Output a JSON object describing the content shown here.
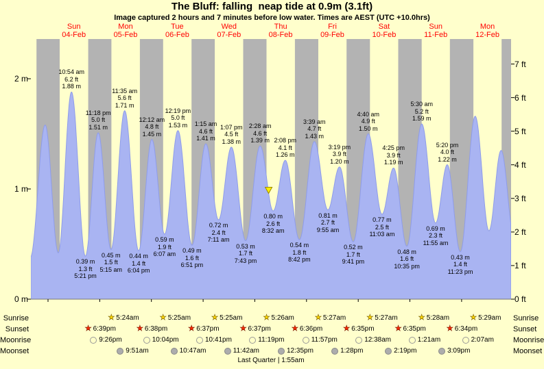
{
  "chart_data": {
    "type": "area",
    "title": "The Bluff: falling  neap tide at 0.9m (3.1ft)",
    "subtitle": "Image captured 2 hours and 7 minutes before low water. Times are AEST (UTC +10.0hrs)",
    "grid": false,
    "units": {
      "left": "m",
      "right": "ft"
    },
    "ylim_m": [
      0,
      2.36
    ],
    "x_axis": {
      "range_hours": [
        -7.96,
        214.96
      ],
      "t0_meaning": "hours from Sun 04-Feb 00:00",
      "days": [
        {
          "name": "Sun",
          "date": "04-Feb"
        },
        {
          "name": "Mon",
          "date": "05-Feb"
        },
        {
          "name": "Tue",
          "date": "06-Feb"
        },
        {
          "name": "Wed",
          "date": "07-Feb"
        },
        {
          "name": "Thu",
          "date": "08-Feb"
        },
        {
          "name": "Fri",
          "date": "09-Feb"
        },
        {
          "name": "Sat",
          "date": "10-Feb"
        },
        {
          "name": "Sun",
          "date": "11-Feb"
        },
        {
          "name": "Mon",
          "date": "12-Feb"
        }
      ]
    },
    "y_axis": {
      "left_ticks": [
        {
          "value": 0,
          "label": "0 m"
        },
        {
          "value": 1,
          "label": "1 m"
        },
        {
          "value": 2,
          "label": "2 m"
        }
      ],
      "right_ticks": [
        {
          "ft": 0,
          "label": "0 ft"
        },
        {
          "ft": 1,
          "label": "1 ft"
        },
        {
          "ft": 2,
          "label": "2 ft"
        },
        {
          "ft": 3,
          "label": "3 ft"
        },
        {
          "ft": 4,
          "label": "4 ft"
        },
        {
          "ft": 5,
          "label": "5 ft"
        },
        {
          "ft": 6,
          "label": "6 ft"
        },
        {
          "ft": 7,
          "label": "7 ft"
        }
      ]
    },
    "tide_extremes": [
      {
        "t": -8.2,
        "m": 0.38,
        "type": "low"
      },
      {
        "t": -1.33,
        "m": 1.58,
        "type": "high"
      },
      {
        "t": 4.75,
        "m": 0.42,
        "type": "low"
      },
      {
        "t": 10.9,
        "m": 1.88,
        "type": "high",
        "lines": [
          "10:54 am",
          "6.2 ft",
          "1.88 m"
        ]
      },
      {
        "t": 17.35,
        "m": 0.39,
        "type": "low",
        "lines": [
          "0.39 m",
          "1.3 ft",
          "5:21 pm"
        ]
      },
      {
        "t": 23.3,
        "m": 1.51,
        "type": "high",
        "lines": [
          "11:18 pm",
          "5.0 ft",
          "1.51 m"
        ]
      },
      {
        "t": 29.25,
        "m": 0.45,
        "type": "low",
        "lines": [
          "0.45 m",
          "1.5 ft",
          "5:15 am"
        ]
      },
      {
        "t": 35.583,
        "m": 1.71,
        "type": "high",
        "lines": [
          "11:35 am",
          "5.6 ft",
          "1.71 m"
        ]
      },
      {
        "t": 42.067,
        "m": 0.44,
        "type": "low",
        "lines": [
          "0.44 m",
          "1.4 ft",
          "6:04 pm"
        ]
      },
      {
        "t": 48.2,
        "m": 1.45,
        "type": "high",
        "lines": [
          "12:12 am",
          "4.8 ft",
          "1.45 m"
        ]
      },
      {
        "t": 54.117,
        "m": 0.59,
        "type": "low",
        "lines": [
          "0.59 m",
          "1.9 ft",
          "6:07 am"
        ]
      },
      {
        "t": 60.317,
        "m": 1.53,
        "type": "high",
        "lines": [
          "12:19 pm",
          "5.0 ft",
          "1.53 m"
        ]
      },
      {
        "t": 66.85,
        "m": 0.49,
        "type": "low",
        "lines": [
          "0.49 m",
          "1.6 ft",
          "6:51 pm"
        ]
      },
      {
        "t": 73.25,
        "m": 1.41,
        "type": "high",
        "lines": [
          "1:15 am",
          "4.6 ft",
          "1.41 m"
        ]
      },
      {
        "t": 79.183,
        "m": 0.72,
        "type": "low",
        "lines": [
          "0.72 m",
          "2.4 ft",
          "7:11 am"
        ]
      },
      {
        "t": 85.117,
        "m": 1.38,
        "type": "high",
        "lines": [
          "1:07 pm",
          "4.5 ft",
          "1.38 m"
        ]
      },
      {
        "t": 91.717,
        "m": 0.53,
        "type": "low",
        "lines": [
          "0.53 m",
          "1.7 ft",
          "7:43 pm"
        ]
      },
      {
        "t": 98.467,
        "m": 1.39,
        "type": "high",
        "lines": [
          "2:28 am",
          "4.6 ft",
          "1.39 m"
        ]
      },
      {
        "t": 104.533,
        "m": 0.8,
        "type": "low",
        "lines": [
          "0.80 m",
          "2.6 ft",
          "8:32 am"
        ]
      },
      {
        "t": 110.133,
        "m": 1.26,
        "type": "high",
        "lines": [
          "2:08 pm",
          "4.1 ft",
          "1.26 m"
        ]
      },
      {
        "t": 116.7,
        "m": 0.54,
        "type": "low",
        "lines": [
          "0.54 m",
          "1.8 ft",
          "8:42 pm"
        ]
      },
      {
        "t": 123.65,
        "m": 1.43,
        "type": "high",
        "lines": [
          "3:39 am",
          "4.7 ft",
          "1.43 m"
        ]
      },
      {
        "t": 129.917,
        "m": 0.81,
        "type": "low",
        "lines": [
          "0.81 m",
          "2.7 ft",
          "9:55 am"
        ]
      },
      {
        "t": 135.317,
        "m": 1.2,
        "type": "high",
        "lines": [
          "3:19 pm",
          "3.9 ft",
          "1.20 m"
        ]
      },
      {
        "t": 141.683,
        "m": 0.52,
        "type": "low",
        "lines": [
          "0.52 m",
          "1.7 ft",
          "9:41 pm"
        ]
      },
      {
        "t": 148.667,
        "m": 1.5,
        "type": "high",
        "lines": [
          "4:40 am",
          "4.9 ft",
          "1.50 m"
        ]
      },
      {
        "t": 155.05,
        "m": 0.77,
        "type": "low",
        "lines": [
          "0.77 m",
          "2.5 ft",
          "11:03 am"
        ]
      },
      {
        "t": 160.417,
        "m": 1.19,
        "type": "high",
        "lines": [
          "4:25 pm",
          "3.9 ft",
          "1.19 m"
        ]
      },
      {
        "t": 166.583,
        "m": 0.48,
        "type": "low",
        "lines": [
          "0.48 m",
          "1.6 ft",
          "10:35 pm"
        ]
      },
      {
        "t": 173.5,
        "m": 1.59,
        "type": "high",
        "lines": [
          "5:30 am",
          "5.2 ft",
          "1.59 m"
        ]
      },
      {
        "t": 179.917,
        "m": 0.69,
        "type": "low",
        "lines": [
          "0.69 m",
          "2.3 ft",
          "11:55 am"
        ]
      },
      {
        "t": 185.333,
        "m": 1.22,
        "type": "high",
        "lines": [
          "5:20 pm",
          "4.0 ft",
          "1.22 m"
        ]
      },
      {
        "t": 191.383,
        "m": 0.43,
        "type": "low",
        "lines": [
          "0.43 m",
          "1.4 ft",
          "11:23 pm"
        ]
      },
      {
        "t": 198.3,
        "m": 1.66,
        "type": "high"
      },
      {
        "t": 204.7,
        "m": 0.62,
        "type": "low"
      },
      {
        "t": 210.3,
        "m": 1.35,
        "type": "high"
      },
      {
        "t": 216.5,
        "m": 0.55,
        "type": "low"
      }
    ],
    "night_bands_hours": [
      [
        -5.35,
        5.4
      ],
      [
        18.65,
        29.4
      ],
      [
        42.633,
        53.417
      ],
      [
        66.617,
        77.417
      ],
      [
        90.617,
        101.433
      ],
      [
        114.6,
        125.45
      ],
      [
        138.583,
        149.45
      ],
      [
        162.583,
        173.467
      ],
      [
        186.567,
        197.483
      ],
      [
        210.567,
        215.2
      ]
    ],
    "current_time_marker": {
      "t": 102.42,
      "description": "2 hours and 7 minutes before low water"
    },
    "colors": {
      "background": "#ffffcc",
      "night_band": "#b3b3b3",
      "tide_fill": "#a9b4f2",
      "tide_stroke": "#8e9cea",
      "day_label": "#ff0000",
      "annotation_text": "#000000",
      "marker_fill": "#ffee00"
    }
  },
  "astro": {
    "rows": [
      {
        "id": "sunrise",
        "label": "Sunrise",
        "icon": "star-yellow",
        "events": [
          {
            "t": 29.4,
            "time": "5:24am"
          },
          {
            "t": 53.417,
            "time": "5:25am"
          },
          {
            "t": 77.417,
            "time": "5:25am"
          },
          {
            "t": 101.433,
            "time": "5:26am"
          },
          {
            "t": 125.45,
            "time": "5:27am"
          },
          {
            "t": 149.45,
            "time": "5:27am"
          },
          {
            "t": 173.467,
            "time": "5:28am"
          },
          {
            "t": 197.483,
            "time": "5:29am"
          }
        ]
      },
      {
        "id": "sunset",
        "label": "Sunset",
        "icon": "star-red",
        "events": [
          {
            "t": 18.65,
            "time": "6:39pm"
          },
          {
            "t": 42.633,
            "time": "6:38pm"
          },
          {
            "t": 66.617,
            "time": "6:37pm"
          },
          {
            "t": 90.617,
            "time": "6:37pm"
          },
          {
            "t": 114.6,
            "time": "6:36pm"
          },
          {
            "t": 138.583,
            "time": "6:35pm"
          },
          {
            "t": 162.583,
            "time": "6:35pm"
          },
          {
            "t": 186.567,
            "time": "6:34pm"
          }
        ]
      },
      {
        "id": "moonrise",
        "label": "Moonrise",
        "icon": "circle-yellow",
        "events": [
          {
            "t": 21.433,
            "time": "9:26pm"
          },
          {
            "t": 46.067,
            "time": "10:04pm"
          },
          {
            "t": 70.683,
            "time": "10:41pm"
          },
          {
            "t": 95.317,
            "time": "11:19pm"
          },
          {
            "t": 119.95,
            "time": "11:57pm"
          },
          {
            "t": 144.633,
            "time": "12:38am"
          },
          {
            "t": 169.35,
            "time": "1:21am"
          },
          {
            "t": 194.117,
            "time": "2:07am"
          }
        ]
      },
      {
        "id": "moonset",
        "label": "Moonset",
        "icon": "circle-gray",
        "events": [
          {
            "t": 33.85,
            "time": "9:51am"
          },
          {
            "t": 58.783,
            "time": "10:47am"
          },
          {
            "t": 83.7,
            "time": "11:42am"
          },
          {
            "t": 108.583,
            "time": "12:35pm"
          },
          {
            "t": 133.467,
            "time": "1:28pm"
          },
          {
            "t": 158.317,
            "time": "2:19pm"
          },
          {
            "t": 183.15,
            "time": "3:09pm"
          }
        ]
      }
    ],
    "moon_phase": "Last Quarter | 1:55am"
  }
}
